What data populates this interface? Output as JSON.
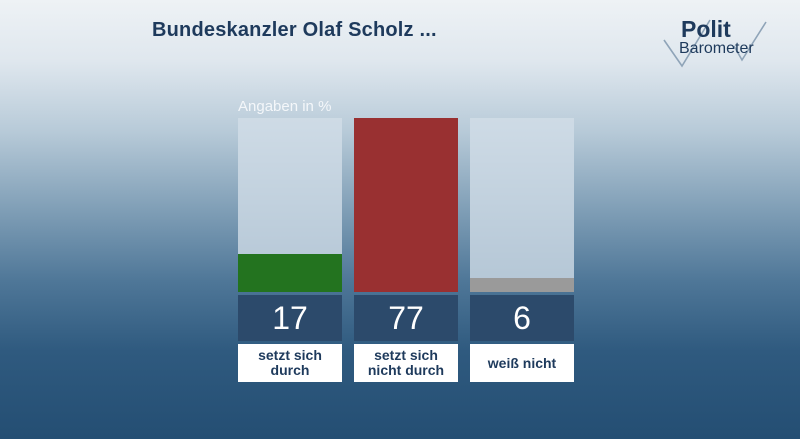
{
  "header": {
    "title": "Bundeskanzler Olaf Scholz ..."
  },
  "logo": {
    "line1": "Polit",
    "line2": "Barometer",
    "icon": "checkmark-icon"
  },
  "chart_data": {
    "type": "bar",
    "unit_note": "Angaben in %",
    "categories": [
      "setzt sich\ndurch",
      "setzt sich\nnicht durch",
      "weiß nicht"
    ],
    "values": [
      17,
      77,
      6
    ],
    "value_labels": [
      "17",
      "77",
      "6"
    ],
    "colors": [
      "#23731f",
      "#993031",
      "#9a9a9a"
    ],
    "ylim": [
      0,
      77
    ],
    "grid": false,
    "legend": "none"
  }
}
